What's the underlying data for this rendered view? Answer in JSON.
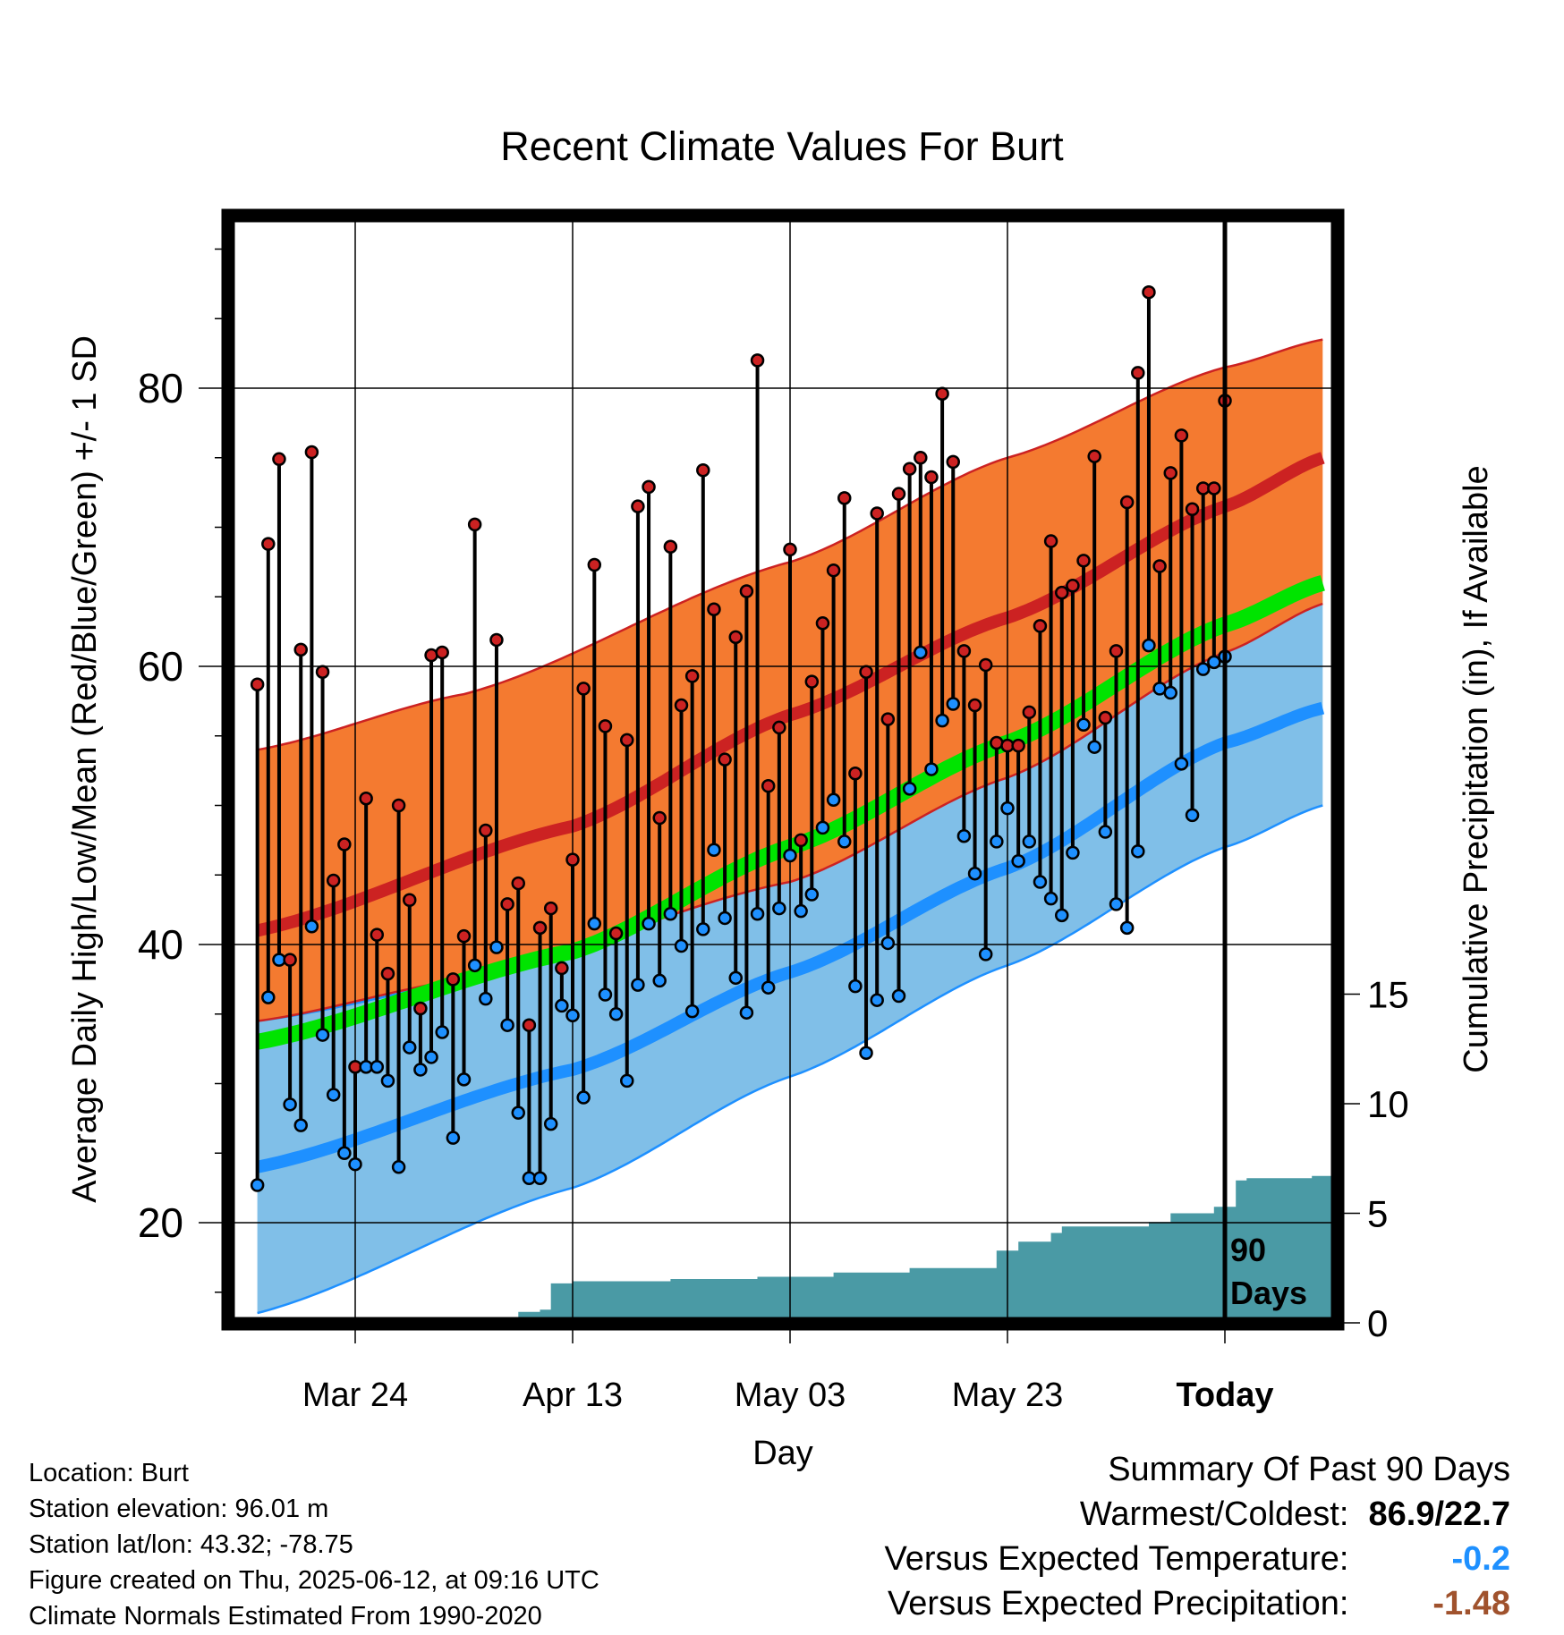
{
  "title": "Recent Climate Values For Burt",
  "chart_data": {
    "type": "line",
    "xlabel": "Day",
    "ylabel_left": "Average Daily High/Low/Mean (Red/Blue/Green) +/- 1 SD",
    "ylabel_right": "Cumulative Precipitation (in), If Available",
    "x_ticks": [
      "Mar 24",
      "Apr 13",
      "May 03",
      "May 23",
      "Today"
    ],
    "y_left_ticks": [
      20,
      40,
      60,
      80
    ],
    "y_left_range": [
      13,
      93
    ],
    "y_right_ticks": [
      0,
      5,
      10,
      15
    ],
    "y_right_range": [
      0,
      15
    ],
    "x_range_days": [
      -89,
      9
    ],
    "today_marker": {
      "day": 0,
      "label_line1": "90",
      "label_line2": "Days"
    },
    "normals": {
      "high_mean": [
        [
          -89,
          41.0
        ],
        [
          -60,
          48.5
        ],
        [
          -40,
          56.5
        ],
        [
          -20,
          63.5
        ],
        [
          0,
          71.5
        ],
        [
          9,
          75.0
        ]
      ],
      "high_sd_top": [
        [
          -89,
          54.0
        ],
        [
          -70,
          58.0
        ],
        [
          -40,
          67.5
        ],
        [
          -20,
          75.0
        ],
        [
          0,
          81.5
        ],
        [
          9,
          83.5
        ]
      ],
      "high_sd_bot": [
        [
          -89,
          34.5
        ],
        [
          -70,
          37.5
        ],
        [
          -40,
          44.5
        ],
        [
          -20,
          52.0
        ],
        [
          0,
          61.0
        ],
        [
          9,
          64.5
        ]
      ],
      "mean": [
        [
          -89,
          33.0
        ],
        [
          -60,
          39.5
        ],
        [
          -40,
          47.0
        ],
        [
          -20,
          54.5
        ],
        [
          0,
          63.0
        ],
        [
          9,
          66.0
        ]
      ],
      "low_mean": [
        [
          -89,
          24.0
        ],
        [
          -60,
          31.0
        ],
        [
          -40,
          38.0
        ],
        [
          -20,
          45.5
        ],
        [
          0,
          54.5
        ],
        [
          9,
          57.0
        ]
      ],
      "low_sd_top": [
        [
          -89,
          34.5
        ],
        [
          -60,
          39.0
        ],
        [
          -40,
          46.5
        ],
        [
          -20,
          55.0
        ],
        [
          0,
          63.5
        ],
        [
          9,
          66.0
        ]
      ],
      "low_sd_bot": [
        [
          -89,
          13.5
        ],
        [
          -60,
          22.5
        ],
        [
          -40,
          30.5
        ],
        [
          -20,
          38.5
        ],
        [
          0,
          47.0
        ],
        [
          9,
          50.0
        ]
      ]
    },
    "daily": [
      [
        58.7,
        22.7
      ],
      [
        68.8,
        36.2
      ],
      [
        74.9,
        38.9
      ],
      [
        38.9,
        28.5
      ],
      [
        61.2,
        27.0
      ],
      [
        75.4,
        41.3
      ],
      [
        59.6,
        33.5
      ],
      [
        44.6,
        29.2
      ],
      [
        47.2,
        25.0
      ],
      [
        31.2,
        24.2
      ],
      [
        50.5,
        31.2
      ],
      [
        40.7,
        31.2
      ],
      [
        37.9,
        30.2
      ],
      [
        50.0,
        24.0
      ],
      [
        43.2,
        32.6
      ],
      [
        35.4,
        31.0
      ],
      [
        60.8,
        31.9
      ],
      [
        61.0,
        33.7
      ],
      [
        37.5,
        26.1
      ],
      [
        40.6,
        30.3
      ],
      [
        70.2,
        38.5
      ],
      [
        48.2,
        36.1
      ],
      [
        61.9,
        39.8
      ],
      [
        42.9,
        34.2
      ],
      [
        44.4,
        27.9
      ],
      [
        34.2,
        23.2
      ],
      [
        41.2,
        23.2
      ],
      [
        42.6,
        27.1
      ],
      [
        38.3,
        35.6
      ],
      [
        46.1,
        34.9
      ],
      [
        58.4,
        29.0
      ],
      [
        67.3,
        41.5
      ],
      [
        55.7,
        36.4
      ],
      [
        40.8,
        35.0
      ],
      [
        54.7,
        30.2
      ],
      [
        71.5,
        37.1
      ],
      [
        72.9,
        41.5
      ],
      [
        49.1,
        37.4
      ],
      [
        68.6,
        42.2
      ],
      [
        57.2,
        39.9
      ],
      [
        59.3,
        35.2
      ],
      [
        74.1,
        41.1
      ],
      [
        64.1,
        46.8
      ],
      [
        53.3,
        41.9
      ],
      [
        62.1,
        37.6
      ],
      [
        65.4,
        35.1
      ],
      [
        82.0,
        42.2
      ],
      [
        51.4,
        36.9
      ],
      [
        55.6,
        42.6
      ],
      [
        68.4,
        46.4
      ],
      [
        47.5,
        42.4
      ],
      [
        58.9,
        43.6
      ],
      [
        63.1,
        48.4
      ],
      [
        66.9,
        50.4
      ],
      [
        72.1,
        47.4
      ],
      [
        52.3,
        37.0
      ],
      [
        59.6,
        32.2
      ],
      [
        71.0,
        36.0
      ],
      [
        56.2,
        40.1
      ],
      [
        72.4,
        36.3
      ],
      [
        74.2,
        51.2
      ],
      [
        75.0,
        61.0
      ],
      [
        73.6,
        52.6
      ],
      [
        79.6,
        56.1
      ],
      [
        74.7,
        57.3
      ],
      [
        61.1,
        47.8
      ],
      [
        57.2,
        45.1
      ],
      [
        60.1,
        39.3
      ],
      [
        54.5,
        47.4
      ],
      [
        54.3,
        49.8
      ],
      [
        54.3,
        46.0
      ],
      [
        56.7,
        47.4
      ],
      [
        62.9,
        44.5
      ],
      [
        69.0,
        43.3
      ],
      [
        65.3,
        42.1
      ],
      [
        65.8,
        46.6
      ],
      [
        67.6,
        55.8
      ],
      [
        75.1,
        54.2
      ],
      [
        56.3,
        48.1
      ],
      [
        61.1,
        42.9
      ],
      [
        71.8,
        41.2
      ],
      [
        81.1,
        46.7
      ],
      [
        86.9,
        61.5
      ],
      [
        67.2,
        58.4
      ],
      [
        73.9,
        58.1
      ],
      [
        76.6,
        53.0
      ],
      [
        71.3,
        49.3
      ],
      [
        72.8,
        59.8
      ],
      [
        72.8,
        60.3
      ],
      [
        79.1,
        60.7
      ]
    ],
    "precip_cumulative": [
      [
        -89,
        0.0
      ],
      [
        -70,
        0.1
      ],
      [
        -66,
        0.1
      ],
      [
        -65,
        0.5
      ],
      [
        -63,
        0.6
      ],
      [
        -62,
        1.8
      ],
      [
        -60,
        1.9
      ],
      [
        -52,
        1.9
      ],
      [
        -51,
        2.0
      ],
      [
        -44,
        2.0
      ],
      [
        -43,
        2.1
      ],
      [
        -38,
        2.1
      ],
      [
        -36,
        2.3
      ],
      [
        -30,
        2.3
      ],
      [
        -29,
        2.5
      ],
      [
        -22,
        2.5
      ],
      [
        -21,
        3.3
      ],
      [
        -20,
        3.3
      ],
      [
        -19,
        3.7
      ],
      [
        -17,
        3.7
      ],
      [
        -16,
        4.1
      ],
      [
        -15,
        4.4
      ],
      [
        -8,
        4.4
      ],
      [
        -7,
        4.6
      ],
      [
        -6,
        4.6
      ],
      [
        -5,
        5.0
      ],
      [
        -2,
        5.0
      ],
      [
        -1,
        5.3
      ],
      [
        0,
        5.3
      ],
      [
        1,
        6.5
      ],
      [
        2,
        6.6
      ],
      [
        5,
        6.6
      ],
      [
        8,
        6.7
      ],
      [
        9,
        6.7
      ],
      [
        10,
        6.7
      ],
      [
        15,
        6.8
      ],
      [
        17,
        6.8
      ],
      [
        18,
        7.0
      ],
      [
        22,
        7.0
      ],
      [
        23,
        7.1
      ],
      [
        32,
        7.1
      ]
    ]
  },
  "metadata_lines": [
    "Location: Burt",
    "Station elevation: 96.01 m",
    "Station lat/lon: 43.32; -78.75",
    "Figure created on Thu, 2025-06-12, at 09:16 UTC",
    "Climate Normals Estimated From 1990-2020"
  ],
  "summary": {
    "heading": "Summary Of Past 90 Days",
    "warm_cold_label": "Warmest/Coldest:",
    "warm_cold_value": "86.9/22.7",
    "temp_label": "Versus Expected Temperature:",
    "temp_value": "-0.2",
    "temp_color": "#1e90ff",
    "precip_label": "Versus Expected Precipitation:",
    "precip_value": "-1.48",
    "precip_color": "#a0522d"
  },
  "colors": {
    "high_band": "#f47a30",
    "high_line": "#cc2222",
    "low_band": "#80bfe8",
    "low_line": "#1e90ff",
    "mean_line": "#00e400",
    "precip": "#4a9aa5",
    "high_dot": "#cc2222",
    "low_dot": "#1e90ff"
  }
}
